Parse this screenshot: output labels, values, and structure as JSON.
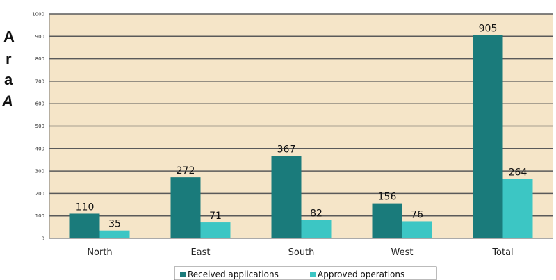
{
  "side_text": [
    "A",
    "r",
    "a",
    "A"
  ],
  "chart_data": {
    "type": "bar",
    "categories": [
      "North",
      "East",
      "South",
      "West",
      "Total"
    ],
    "series": [
      {
        "name": "Received applications",
        "values": [
          110,
          272,
          367,
          156,
          905
        ]
      },
      {
        "name": "Approved operations",
        "values": [
          35,
          71,
          82,
          76,
          264
        ]
      }
    ],
    "yticks": [
      "0",
      "100",
      "200",
      "300",
      "400",
      "500",
      "600",
      "700",
      "800",
      "900",
      "1000"
    ],
    "ylim": [
      0,
      1000
    ],
    "grid": true,
    "legend_position": "bottom",
    "colors": {
      "plot_background": "#f5e5c8",
      "gridline": "#5a5a5a",
      "received": "#1a7b7b",
      "approved": "#3cc6c4"
    }
  }
}
